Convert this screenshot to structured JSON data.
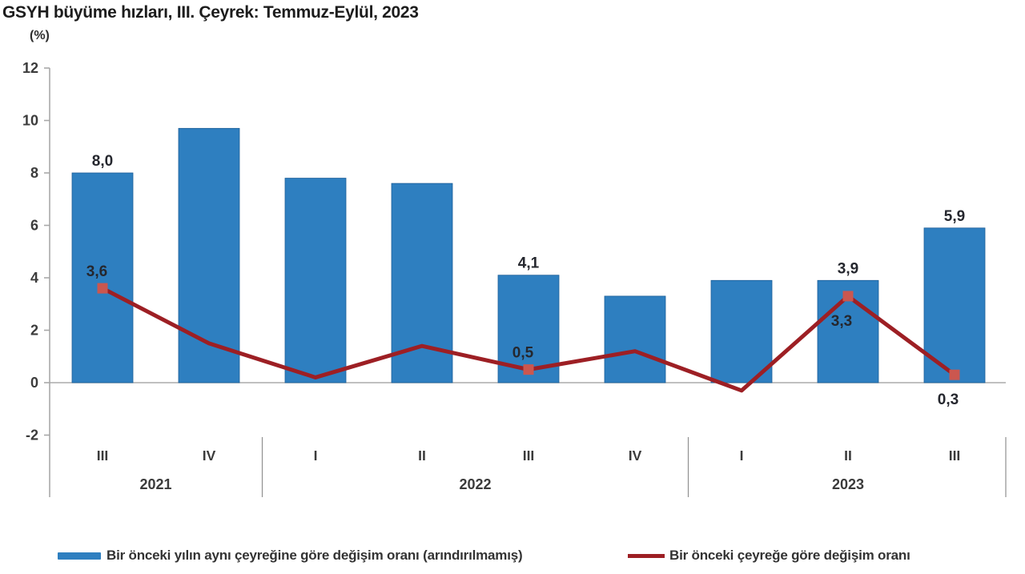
{
  "title": "GSYH büyüme hızları, III. Çeyrek: Temmuz-Eylül, 2023",
  "unit_label": "(%)",
  "chart_data": {
    "type": "bar+line",
    "categories": [
      "III 2021",
      "IV 2021",
      "I 2022",
      "II 2022",
      "III 2022",
      "IV 2022",
      "I 2023",
      "II 2023",
      "III 2023"
    ],
    "x_groups": [
      {
        "year": "2021",
        "quarters": [
          "III",
          "IV"
        ]
      },
      {
        "year": "2022",
        "quarters": [
          "I",
          "II",
          "III",
          "IV"
        ]
      },
      {
        "year": "2023",
        "quarters": [
          "I",
          "II",
          "III"
        ]
      }
    ],
    "series": [
      {
        "name": "Bir önceki yılın aynı çeyreğine göre değişim oranı (arındırılmamış)",
        "type": "bar",
        "color": "#2E7FC0",
        "values": [
          8.0,
          9.7,
          7.8,
          7.6,
          4.1,
          3.3,
          3.9,
          3.9,
          5.9
        ],
        "point_labels": {
          "0": "8,0",
          "4": "4,1",
          "7": "3,9",
          "8": "5,9"
        }
      },
      {
        "name": "Bir önceki çeyreğe göre değişim oranı",
        "type": "line",
        "color": "#9D1F24",
        "marker_color": "#CB574F",
        "values": [
          3.6,
          1.5,
          0.2,
          1.4,
          0.5,
          1.2,
          -0.3,
          3.3,
          0.3
        ],
        "point_labels": {
          "0": "3,6",
          "4": "0,5",
          "7": "3,3",
          "8": "0,3"
        },
        "labels_below": [
          "7",
          "8"
        ]
      }
    ],
    "y_ticks": [
      12,
      10,
      8,
      6,
      4,
      2,
      0,
      -2
    ],
    "ylim": [
      -2,
      12
    ],
    "grid": "zero-line-only",
    "legend_position": "bottom"
  },
  "legend": {
    "items": [
      {
        "label": "Bir önceki yılın aynı çeyreğine göre değişim oranı (arındırılmamış)",
        "color": "#2E7FC0",
        "swatch": "bar"
      },
      {
        "label": "Bir önceki çeyreğe göre değişim oranı",
        "color": "#9D1F24",
        "swatch": "line"
      }
    ]
  },
  "colors": {
    "bar": "#2E7FC0",
    "bar_edge": "#1D5F98",
    "line": "#9D1F24",
    "marker": "#CB574F",
    "axis": "#A8A8A8",
    "zero_line": "#ABABAB",
    "separator": "#909090",
    "tick_text": "#3B3B3B",
    "value_text": "#25272E"
  }
}
